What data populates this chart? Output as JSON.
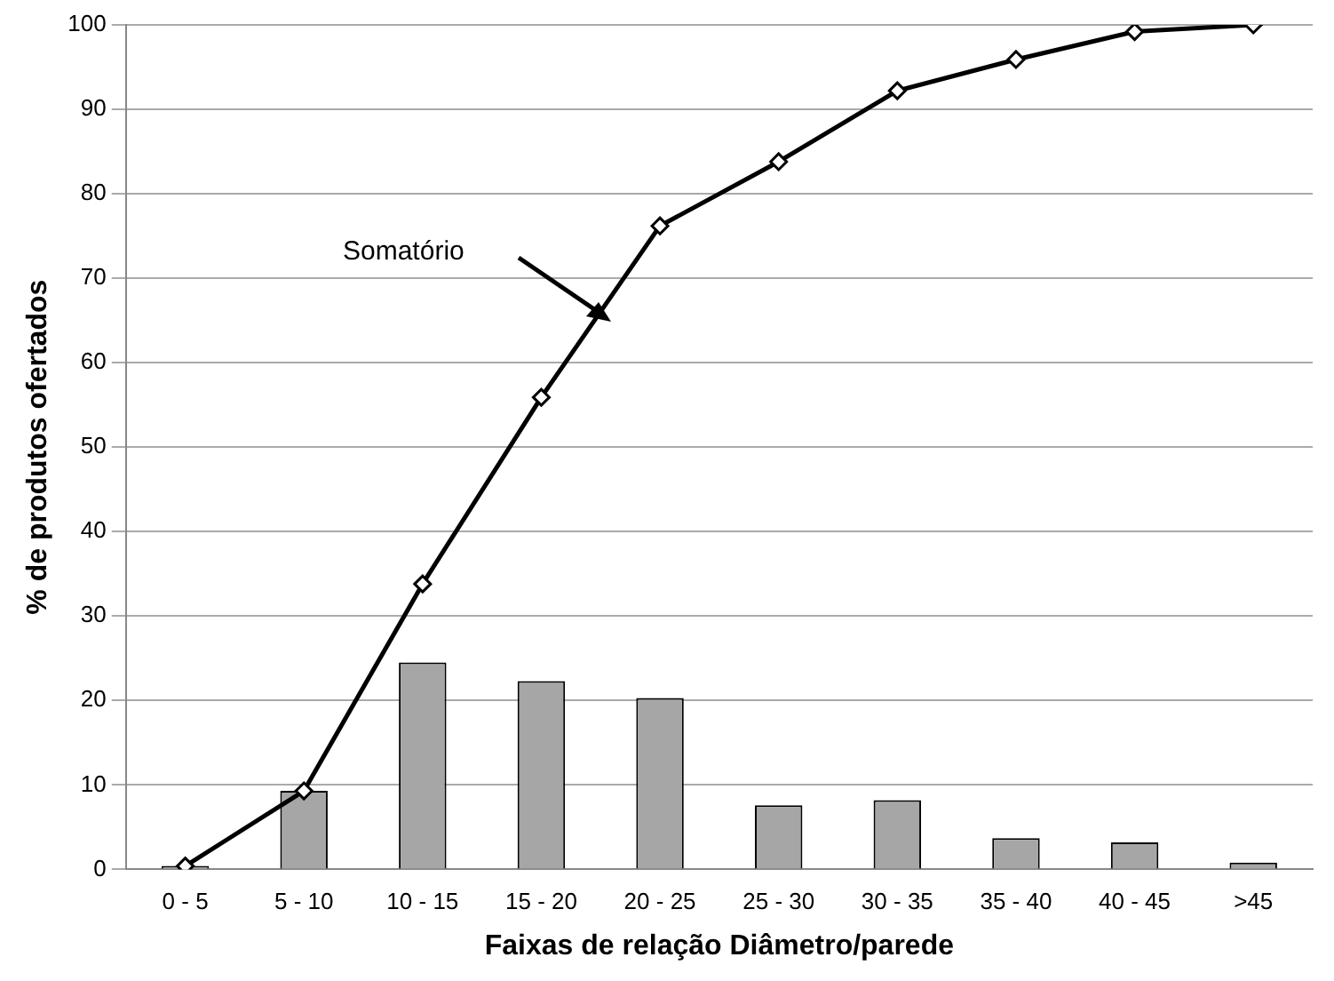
{
  "chart_data": {
    "type": "bar",
    "xlabel": "Faixas de relação Diâmetro/parede",
    "ylabel": "% de produtos ofertados",
    "categories": [
      "0 - 5",
      "5 - 10",
      "10 - 15",
      "15 - 20",
      "20 - 25",
      "25 - 30",
      "30 - 35",
      "35 - 40",
      "40 - 45",
      ">45"
    ],
    "series": [
      {
        "color": "#a6a6a6",
        "values": [
          0.4,
          9.3,
          24.5,
          22.3,
          20.3,
          7.6,
          8.2,
          3.7,
          3.2,
          0.8
        ]
      },
      {
        "type": "line",
        "color": "#000000",
        "values": [
          0.4,
          9.3,
          33.8,
          55.9,
          76.2,
          83.8,
          92.2,
          95.9,
          99.2,
          100
        ]
      }
    ],
    "ylim": [
      0,
      100
    ],
    "yticks": [
      0,
      10,
      20,
      30,
      40,
      50,
      60,
      70,
      80,
      90,
      100
    ],
    "grid": "y",
    "legend": false,
    "marker": "diamond",
    "line_style": "solid",
    "annotations": [
      "Somatório"
    ]
  }
}
